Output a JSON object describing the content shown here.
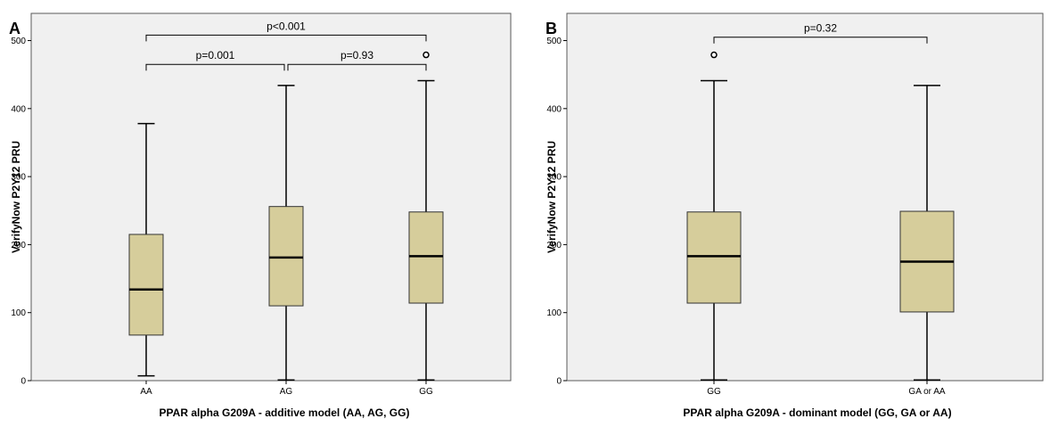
{
  "colors": {
    "box_fill": "#d6cd9b",
    "plot_bg": "#f0f0f0",
    "frame": "#5a5a5a"
  },
  "chart_data": [
    {
      "type": "boxplot",
      "panel": "A",
      "xlabel": "PPAR alpha G209A - additive model (AA, AG, GG)",
      "ylabel": "VerifyNow P2Y12 PRU",
      "ylim": [
        0,
        540
      ],
      "yticks": [
        0,
        100,
        200,
        300,
        400,
        500
      ],
      "grid": false,
      "categories": [
        "AA",
        "AG",
        "GG"
      ],
      "boxes": [
        {
          "category": "AA",
          "min": 7,
          "q1": 67,
          "median": 134,
          "q3": 215,
          "max": 378,
          "outliers": []
        },
        {
          "category": "AG",
          "min": 1,
          "q1": 110,
          "median": 181,
          "q3": 256,
          "max": 434,
          "outliers": []
        },
        {
          "category": "GG",
          "min": 1,
          "q1": 114,
          "median": 183,
          "q3": 248,
          "max": 441,
          "outliers": [
            479
          ]
        }
      ],
      "comparisons": [
        {
          "groups": [
            "AA",
            "GG"
          ],
          "label": "p<0.001",
          "level": 508
        },
        {
          "groups": [
            "AA",
            "AG"
          ],
          "label": "p=0.001",
          "level": 465
        },
        {
          "groups": [
            "AG",
            "GG"
          ],
          "label": "p=0.93",
          "level": 465
        }
      ]
    },
    {
      "type": "boxplot",
      "panel": "B",
      "xlabel": "PPAR alpha G209A - dominant model (GG, GA or AA)",
      "ylabel": "VerifyNow P2Y12 PRU",
      "ylim": [
        0,
        540
      ],
      "yticks": [
        0,
        100,
        200,
        300,
        400,
        500
      ],
      "grid": false,
      "categories": [
        "GG",
        "GA or AA"
      ],
      "boxes": [
        {
          "category": "GG",
          "min": 1,
          "q1": 114,
          "median": 183,
          "q3": 248,
          "max": 441,
          "outliers": [
            479
          ]
        },
        {
          "category": "GA or AA",
          "min": 1,
          "q1": 101,
          "median": 175,
          "q3": 249,
          "max": 434,
          "outliers": []
        }
      ],
      "comparisons": [
        {
          "groups": [
            "GG",
            "GA or AA"
          ],
          "label": "p=0.32",
          "level": 505
        }
      ]
    }
  ]
}
